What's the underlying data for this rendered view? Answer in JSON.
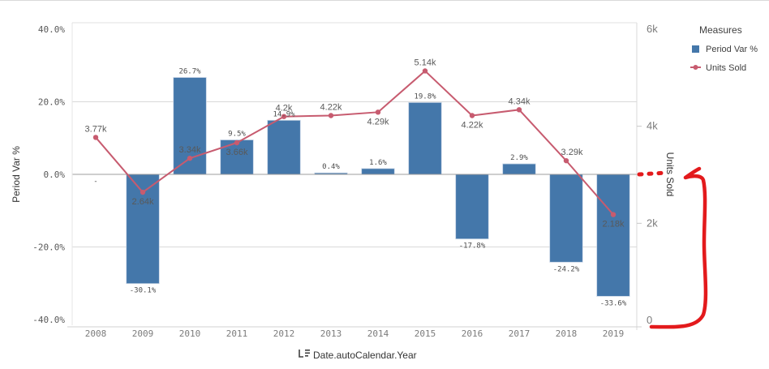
{
  "chart_data": {
    "type": "bar",
    "combo": true,
    "categories": [
      "2008",
      "2009",
      "2010",
      "2011",
      "2012",
      "2013",
      "2014",
      "2015",
      "2016",
      "2017",
      "2018",
      "2019"
    ],
    "xlabel": "Date.autoCalendar.Year",
    "ylabel": "Period Var %",
    "y2label": "Units Sold",
    "ylim": [
      -40,
      40
    ],
    "y2lim": [
      0,
      6000
    ],
    "yticks": [
      "40.0%",
      "20.0%",
      "0.0%",
      "-20.0%",
      "-40.0%"
    ],
    "ytick_values": [
      40,
      20,
      0,
      -20,
      -40
    ],
    "y2ticks": [
      "6k",
      "4k",
      "2k",
      "0"
    ],
    "y2tick_values": [
      6000,
      4000,
      2000,
      0
    ],
    "grid": true,
    "legend": {
      "title": "Measures",
      "placement": "top-right",
      "entries": [
        "Period Var %",
        "Units Sold"
      ]
    },
    "series": [
      {
        "name": "Period Var %",
        "type": "bar",
        "axis": "left",
        "color": "#4477aa",
        "values": [
          null,
          -30.1,
          26.7,
          9.5,
          14.9,
          0.4,
          1.6,
          19.8,
          -17.8,
          2.9,
          -24.2,
          -33.6
        ],
        "labels": [
          "-",
          "-30.1%",
          "26.7%",
          "9.5%",
          "14.9%",
          "0.4%",
          "1.6%",
          "19.8%",
          "-17.8%",
          "2.9%",
          "-24.2%",
          "-33.6%"
        ]
      },
      {
        "name": "Units Sold",
        "type": "line",
        "axis": "right",
        "color": "#c75b6f",
        "values": [
          3770,
          2640,
          3340,
          3660,
          4200,
          4220,
          4290,
          5140,
          4220,
          4340,
          3290,
          2180
        ],
        "labels": [
          "3.77k",
          "2.64k",
          "3.34k",
          "3.66k",
          "4.2k",
          "4.22k",
          "4.29k",
          "5.14k",
          "4.22k",
          "4.34k",
          "3.29k",
          "2.18k"
        ]
      }
    ]
  },
  "dimension_icon": "sort-dimension-icon",
  "annotation": {
    "description": "red hand-drawn arrow from right axis 0 to the Units Sold level aligned with the 0.0% line",
    "color": "#e31a1c"
  }
}
